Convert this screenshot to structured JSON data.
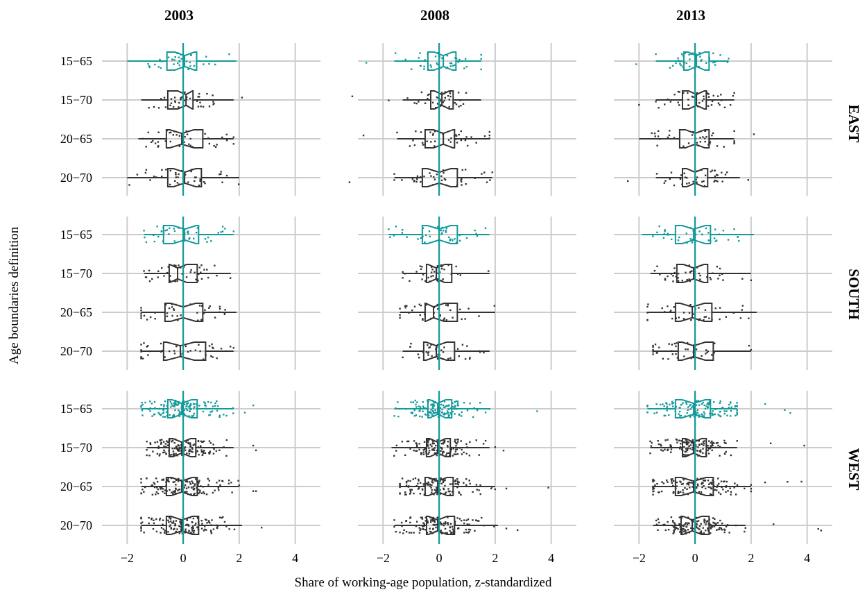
{
  "chart_data": {
    "type": "boxplot",
    "xlabel": "Share of working-age population, z-standardized",
    "ylabel": "Age boundaries definition",
    "facet_columns": [
      "2003",
      "2008",
      "2013"
    ],
    "facet_rows": [
      "EAST",
      "SOUTH",
      "WEST"
    ],
    "categories": [
      "15−65",
      "15−70",
      "20−65",
      "20−70"
    ],
    "x_ticks": [
      -2,
      0,
      2,
      4
    ],
    "x_tick_labels": [
      "−2",
      "0",
      "2",
      "4"
    ],
    "xlim": [
      -2.9,
      4.9
    ],
    "reference_line_x": 0,
    "highlight_category": "15−65",
    "colors": {
      "highlight": "#12999A",
      "default": "#333333",
      "grid": "#CCCCCC"
    },
    "points_per_box": {
      "EAST": 40,
      "SOUTH": 40,
      "WEST": 130
    },
    "panels": [
      {
        "row": "EAST",
        "col": "2003",
        "boxes": [
          {
            "cat": "15−65",
            "wmin": -2.0,
            "q1": -0.58,
            "med": 0.05,
            "q3": 0.48,
            "wmax": 1.9,
            "outliers": []
          },
          {
            "cat": "15−70",
            "wmin": -1.5,
            "q1": -0.55,
            "med": 0.1,
            "q3": 0.35,
            "wmax": 1.8,
            "outliers": [
              2.1
            ]
          },
          {
            "cat": "20−65",
            "wmin": -1.6,
            "q1": -0.6,
            "med": -0.05,
            "q3": 0.7,
            "wmax": 1.8,
            "outliers": []
          },
          {
            "cat": "20−70",
            "wmin": -2.0,
            "q1": -0.55,
            "med": 0.05,
            "q3": 0.65,
            "wmax": 2.0,
            "outliers": []
          }
        ]
      },
      {
        "row": "EAST",
        "col": "2008",
        "boxes": [
          {
            "cat": "15−65",
            "wmin": -1.6,
            "q1": -0.4,
            "med": 0.15,
            "q3": 0.6,
            "wmax": 1.5,
            "outliers": [
              -2.6
            ]
          },
          {
            "cat": "15−70",
            "wmin": -1.3,
            "q1": -0.3,
            "med": 0.1,
            "q3": 0.5,
            "wmax": 1.5,
            "outliers": [
              -1.8,
              -3.1
            ]
          },
          {
            "cat": "20−65",
            "wmin": -1.5,
            "q1": -0.5,
            "med": 0.15,
            "q3": 0.55,
            "wmax": 1.8,
            "outliers": [
              -2.7
            ]
          },
          {
            "cat": "20−70",
            "wmin": -1.6,
            "q1": -0.6,
            "med": 0.0,
            "q3": 0.65,
            "wmax": 1.9,
            "outliers": [
              -3.2
            ]
          }
        ]
      },
      {
        "row": "EAST",
        "col": "2013",
        "boxes": [
          {
            "cat": "15−65",
            "wmin": -1.4,
            "q1": -0.4,
            "med": 0.05,
            "q3": 0.5,
            "wmax": 1.2,
            "outliers": [
              -2.1
            ]
          },
          {
            "cat": "15−70",
            "wmin": -1.4,
            "q1": -0.45,
            "med": 0.05,
            "q3": 0.4,
            "wmax": 1.4,
            "outliers": [
              -2.0
            ]
          },
          {
            "cat": "20−65",
            "wmin": -2.0,
            "q1": -0.55,
            "med": 0.0,
            "q3": 0.5,
            "wmax": 1.4,
            "outliers": [
              2.1
            ]
          },
          {
            "cat": "20−70",
            "wmin": -1.4,
            "q1": -0.45,
            "med": 0.0,
            "q3": 0.45,
            "wmax": 1.6,
            "outliers": [
              -2.4,
              1.9
            ]
          }
        ]
      },
      {
        "row": "SOUTH",
        "col": "2003",
        "boxes": [
          {
            "cat": "15−65",
            "wmin": -1.4,
            "q1": -0.7,
            "med": 0.05,
            "q3": 0.55,
            "wmax": 1.8,
            "outliers": []
          },
          {
            "cat": "15−70",
            "wmin": -1.4,
            "q1": -0.5,
            "med": -0.2,
            "q3": 0.5,
            "wmax": 1.7,
            "outliers": []
          },
          {
            "cat": "20−65",
            "wmin": -1.5,
            "q1": -0.65,
            "med": 0.0,
            "q3": 0.7,
            "wmax": 1.9,
            "outliers": []
          },
          {
            "cat": "20−70",
            "wmin": -1.5,
            "q1": -0.7,
            "med": -0.1,
            "q3": 0.8,
            "wmax": 1.8,
            "outliers": []
          }
        ]
      },
      {
        "row": "SOUTH",
        "col": "2008",
        "boxes": [
          {
            "cat": "15−65",
            "wmin": -1.8,
            "q1": -0.6,
            "med": 0.0,
            "q3": 0.65,
            "wmax": 1.8,
            "outliers": []
          },
          {
            "cat": "15−70",
            "wmin": -1.3,
            "q1": -0.45,
            "med": -0.1,
            "q3": 0.45,
            "wmax": 1.8,
            "outliers": []
          },
          {
            "cat": "20−65",
            "wmin": -1.4,
            "q1": -0.5,
            "med": -0.2,
            "q3": 0.65,
            "wmax": 2.0,
            "outliers": []
          },
          {
            "cat": "20−70",
            "wmin": -1.3,
            "q1": -0.55,
            "med": -0.1,
            "q3": 0.55,
            "wmax": 1.8,
            "outliers": []
          }
        ]
      },
      {
        "row": "SOUTH",
        "col": "2013",
        "boxes": [
          {
            "cat": "15−65",
            "wmin": -1.9,
            "q1": -0.7,
            "med": -0.05,
            "q3": 0.55,
            "wmax": 2.1,
            "outliers": []
          },
          {
            "cat": "15−70",
            "wmin": -1.6,
            "q1": -0.65,
            "med": -0.05,
            "q3": 0.45,
            "wmax": 2.0,
            "outliers": []
          },
          {
            "cat": "20−65",
            "wmin": -1.7,
            "q1": -0.7,
            "med": -0.1,
            "q3": 0.6,
            "wmax": 2.2,
            "outliers": []
          },
          {
            "cat": "20−70",
            "wmin": -1.5,
            "q1": -0.6,
            "med": -0.05,
            "q3": 0.65,
            "wmax": 2.0,
            "outliers": []
          }
        ]
      },
      {
        "row": "WEST",
        "col": "2003",
        "boxes": [
          {
            "cat": "15−65",
            "wmin": -1.5,
            "q1": -0.55,
            "med": -0.05,
            "q3": 0.5,
            "wmax": 1.8,
            "outliers": [
              2.2,
              2.5
            ]
          },
          {
            "cat": "15−70",
            "wmin": -1.3,
            "q1": -0.5,
            "med": -0.05,
            "q3": 0.45,
            "wmax": 1.8,
            "outliers": [
              2.5,
              2.6
            ]
          },
          {
            "cat": "20−65",
            "wmin": -1.5,
            "q1": -0.6,
            "med": -0.05,
            "q3": 0.5,
            "wmax": 2.0,
            "outliers": [
              2.5,
              2.6
            ]
          },
          {
            "cat": "20−70",
            "wmin": -1.5,
            "q1": -0.6,
            "med": -0.05,
            "q3": 0.55,
            "wmax": 2.1,
            "outliers": [
              2.8
            ]
          }
        ]
      },
      {
        "row": "WEST",
        "col": "2008",
        "boxes": [
          {
            "cat": "15−65",
            "wmin": -1.6,
            "q1": -0.4,
            "med": -0.05,
            "q3": 0.45,
            "wmax": 1.8,
            "outliers": [
              3.5
            ]
          },
          {
            "cat": "15−70",
            "wmin": -1.7,
            "q1": -0.45,
            "med": -0.05,
            "q3": 0.4,
            "wmax": 1.8,
            "outliers": [
              2.0,
              2.3
            ]
          },
          {
            "cat": "20−65",
            "wmin": -1.4,
            "q1": -0.5,
            "med": -0.05,
            "q3": 0.5,
            "wmax": 2.0,
            "outliers": [
              2.4,
              3.9
            ]
          },
          {
            "cat": "20−70",
            "wmin": -1.6,
            "q1": -0.45,
            "med": -0.05,
            "q3": 0.55,
            "wmax": 2.1,
            "outliers": [
              2.4,
              2.8
            ]
          }
        ]
      },
      {
        "row": "WEST",
        "col": "2013",
        "boxes": [
          {
            "cat": "15−65",
            "wmin": -1.7,
            "q1": -0.7,
            "med": -0.05,
            "q3": 0.55,
            "wmax": 1.5,
            "outliers": [
              2.5,
              3.2,
              3.4
            ]
          },
          {
            "cat": "15−70",
            "wmin": -1.6,
            "q1": -0.45,
            "med": -0.05,
            "q3": 0.4,
            "wmax": 1.5,
            "outliers": [
              2.7,
              3.9
            ]
          },
          {
            "cat": "20−65",
            "wmin": -1.5,
            "q1": -0.7,
            "med": -0.05,
            "q3": 0.65,
            "wmax": 2.0,
            "outliers": [
              2.5,
              3.3,
              3.8
            ]
          },
          {
            "cat": "20−70",
            "wmin": -1.5,
            "q1": -0.5,
            "med": -0.1,
            "q3": 0.5,
            "wmax": 1.8,
            "outliers": [
              2.8,
              4.4,
              4.5
            ]
          }
        ]
      }
    ]
  }
}
